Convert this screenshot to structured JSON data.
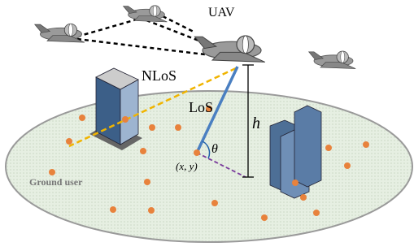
{
  "labels": {
    "uav": "UAV",
    "nlos": "NLoS",
    "los": "LoS",
    "height": "h",
    "angle": "θ",
    "position": "(x, y)",
    "ground_user": "Ground user"
  }
}
